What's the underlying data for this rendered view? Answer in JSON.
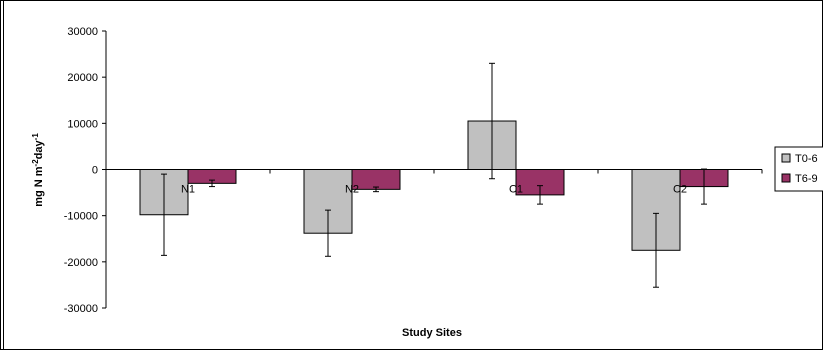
{
  "chart_data": {
    "type": "bar",
    "title": "",
    "xlabel": "Study Sites",
    "ylabel_main": "mg N m",
    "ylabel_sup1": "-2",
    "ylabel_mid": "day",
    "ylabel_sup2": "-1",
    "categories": [
      "N1",
      "N2",
      "C1",
      "C2"
    ],
    "ylim": [
      -30000,
      30000
    ],
    "yticks": [
      30000,
      20000,
      10000,
      0,
      -10000,
      -20000,
      -30000
    ],
    "legend_position": "right",
    "grid": false,
    "series": [
      {
        "name": "T0-6",
        "color": "#c0c0c0",
        "values": [
          -9800,
          -13800,
          10500,
          -17500
        ],
        "errors": [
          8800,
          5000,
          12500,
          8000
        ]
      },
      {
        "name": "T6-9",
        "color": "#993366",
        "values": [
          -3000,
          -4300,
          -5500,
          -3700
        ],
        "errors": [
          700,
          500,
          2000,
          3800
        ]
      }
    ]
  }
}
